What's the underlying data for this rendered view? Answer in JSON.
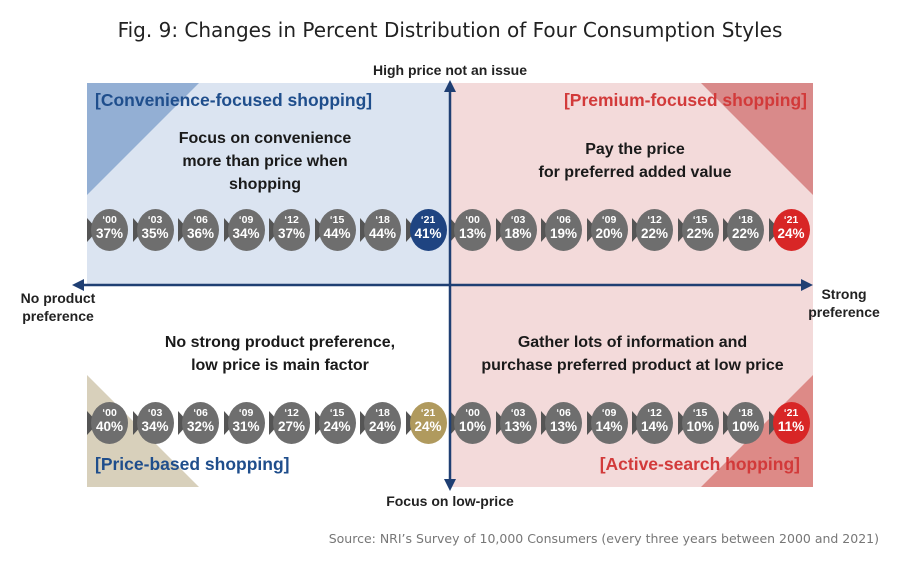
{
  "title": "Fig. 9: Changes in Percent Distribution of Four Consumption Styles",
  "axes": {
    "top": "High price not an issue",
    "bottom": "Focus on low-price",
    "left_line1": "No product",
    "left_line2": "preference",
    "right_line1": "Strong",
    "right_line2": "preference"
  },
  "colors": {
    "convenience_bg": "#dbe4f1",
    "premium_bg": "#f3dada",
    "title_blue": "#1f4e8c",
    "title_red": "#d23a3a",
    "axis": "#1f3f73"
  },
  "quadrants": {
    "convenience": {
      "title": "[Convenience-focused shopping]",
      "desc_line1": "Focus on convenience",
      "desc_line2": "more than price when",
      "desc_line3": "shopping",
      "data": [
        {
          "year": "‘00",
          "pct": "37%"
        },
        {
          "year": "‘03",
          "pct": "35%"
        },
        {
          "year": "‘06",
          "pct": "36%"
        },
        {
          "year": "‘09",
          "pct": "34%"
        },
        {
          "year": "‘12",
          "pct": "37%"
        },
        {
          "year": "‘15",
          "pct": "44%"
        },
        {
          "year": "‘18",
          "pct": "44%"
        },
        {
          "year": "‘21",
          "pct": "41%"
        }
      ]
    },
    "premium": {
      "title": "[Premium-focused shopping]",
      "desc_line1": "Pay the price",
      "desc_line2": "for preferred added value",
      "data": [
        {
          "year": "‘00",
          "pct": "13%"
        },
        {
          "year": "‘03",
          "pct": "18%"
        },
        {
          "year": "‘06",
          "pct": "19%"
        },
        {
          "year": "‘09",
          "pct": "20%"
        },
        {
          "year": "‘12",
          "pct": "22%"
        },
        {
          "year": "‘15",
          "pct": "22%"
        },
        {
          "year": "‘18",
          "pct": "22%"
        },
        {
          "year": "‘21",
          "pct": "24%"
        }
      ]
    },
    "price": {
      "title": "[Price-based shopping]",
      "desc_line1": "No strong product preference,",
      "desc_line2": "low price is main factor",
      "data": [
        {
          "year": "‘00",
          "pct": "40%"
        },
        {
          "year": "‘03",
          "pct": "34%"
        },
        {
          "year": "‘06",
          "pct": "32%"
        },
        {
          "year": "‘09",
          "pct": "31%"
        },
        {
          "year": "‘12",
          "pct": "27%"
        },
        {
          "year": "‘15",
          "pct": "24%"
        },
        {
          "year": "‘18",
          "pct": "24%"
        },
        {
          "year": "‘21",
          "pct": "24%"
        }
      ]
    },
    "active": {
      "title": "[Active-search hopping]",
      "desc_line1": "Gather lots of information and",
      "desc_line2": "purchase preferred product at low price",
      "data": [
        {
          "year": "‘00",
          "pct": "10%"
        },
        {
          "year": "‘03",
          "pct": "13%"
        },
        {
          "year": "‘06",
          "pct": "13%"
        },
        {
          "year": "‘09",
          "pct": "14%"
        },
        {
          "year": "‘12",
          "pct": "14%"
        },
        {
          "year": "‘15",
          "pct": "10%"
        },
        {
          "year": "‘18",
          "pct": "10%"
        },
        {
          "year": "‘21",
          "pct": "11%"
        }
      ]
    }
  },
  "source": "Source: NRI’s Survey of 10,000 Consumers (every three years between 2000 and 2021)"
}
